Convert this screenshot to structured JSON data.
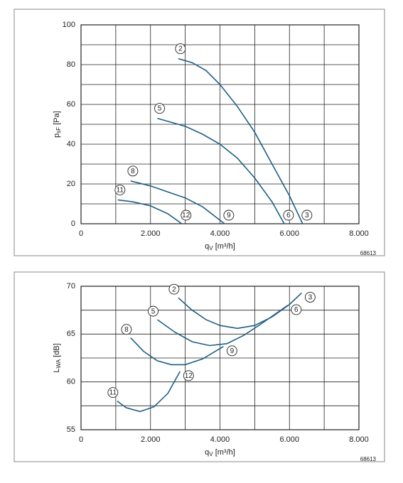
{
  "chart_data": [
    {
      "type": "line",
      "x_label": {
        "main": "q",
        "sub": "V",
        "unit": " [m³/h]"
      },
      "y_label": {
        "main": "p",
        "sub": "sF",
        "unit": " [Pa]"
      },
      "note": "68613",
      "xlim": [
        0,
        8000
      ],
      "xticks": [
        0,
        {
          "value": 2000,
          "label": "2.000"
        },
        {
          "value": 4000,
          "label": "4.000"
        },
        {
          "value": 6000,
          "label": "6.000"
        },
        {
          "value": 8000,
          "label": "8.000"
        }
      ],
      "xminor": [
        1000,
        3000,
        5000,
        7000
      ],
      "ylim": [
        0,
        100
      ],
      "yticks": [
        0,
        20,
        40,
        60,
        80,
        100
      ],
      "yminor": [
        10,
        30,
        50,
        70,
        90
      ],
      "grid": true,
      "series": [
        {
          "name": "2",
          "end_label": "3",
          "color": "#1f5f86",
          "x": [
            2800,
            3200,
            3600,
            4000,
            4500,
            5000,
            5500,
            6000,
            6380
          ],
          "values": [
            83,
            81,
            77,
            70,
            59,
            46,
            30,
            14,
            0
          ]
        },
        {
          "name": "5",
          "end_label": "6",
          "color": "#1f5f86",
          "x": [
            2200,
            3000,
            3500,
            4000,
            4500,
            5000,
            5500,
            5850
          ],
          "values": [
            53,
            49,
            45,
            40,
            33,
            23,
            11,
            0
          ]
        },
        {
          "name": "8",
          "end_label": "9",
          "color": "#1f5f86",
          "x": [
            1430,
            2000,
            2500,
            3000,
            3500,
            4130
          ],
          "values": [
            21.5,
            19,
            16,
            13,
            8.5,
            0
          ]
        },
        {
          "name": "11",
          "end_label": "12",
          "color": "#1f5f86",
          "x": [
            1060,
            1500,
            2000,
            2500,
            2900
          ],
          "values": [
            12,
            11,
            9,
            5,
            0
          ]
        }
      ]
    },
    {
      "type": "line",
      "x_label": {
        "main": "q",
        "sub": "V",
        "unit": " [m³/h]"
      },
      "y_label": {
        "main": "L",
        "sub": "WA",
        "unit": " [dB]"
      },
      "note": "68613",
      "xlim": [
        0,
        8000
      ],
      "xticks": [
        0,
        {
          "value": 2000,
          "label": "2.000"
        },
        {
          "value": 4000,
          "label": "4.000"
        },
        {
          "value": 6000,
          "label": "6.000"
        },
        {
          "value": 8000,
          "label": "8.000"
        }
      ],
      "xminor": [
        1000,
        3000,
        5000,
        7000
      ],
      "ylim": [
        55,
        70
      ],
      "yticks": [
        55,
        60,
        65,
        70
      ],
      "yminor": [
        57.5,
        62.5,
        67.5
      ],
      "grid": true,
      "series": [
        {
          "name": "2",
          "end_label": "3",
          "color": "#1f5f86",
          "x": [
            2800,
            3200,
            3600,
            4000,
            4500,
            5000,
            5500,
            6000,
            6350
          ],
          "values": [
            68.8,
            67.5,
            66.5,
            65.9,
            65.6,
            65.9,
            66.8,
            68.1,
            69.3
          ]
        },
        {
          "name": "5",
          "end_label": "6",
          "color": "#1f5f86",
          "x": [
            2200,
            2700,
            3200,
            3700,
            4200,
            4700,
            5200,
            5950
          ],
          "values": [
            66.5,
            65.2,
            64.2,
            63.8,
            64,
            64.9,
            66.1,
            68
          ]
        },
        {
          "name": "8",
          "end_label": "9",
          "color": "#1f5f86",
          "x": [
            1430,
            1800,
            2200,
            2600,
            3000,
            3500,
            4100
          ],
          "values": [
            64.6,
            63.2,
            62.2,
            61.8,
            61.8,
            62.4,
            63.7
          ]
        },
        {
          "name": "11",
          "end_label": "12",
          "color": "#1f5f86",
          "x": [
            1040,
            1300,
            1700,
            2100,
            2500,
            2850
          ],
          "values": [
            58,
            57.3,
            56.9,
            57.4,
            58.8,
            61.1
          ]
        }
      ]
    }
  ]
}
